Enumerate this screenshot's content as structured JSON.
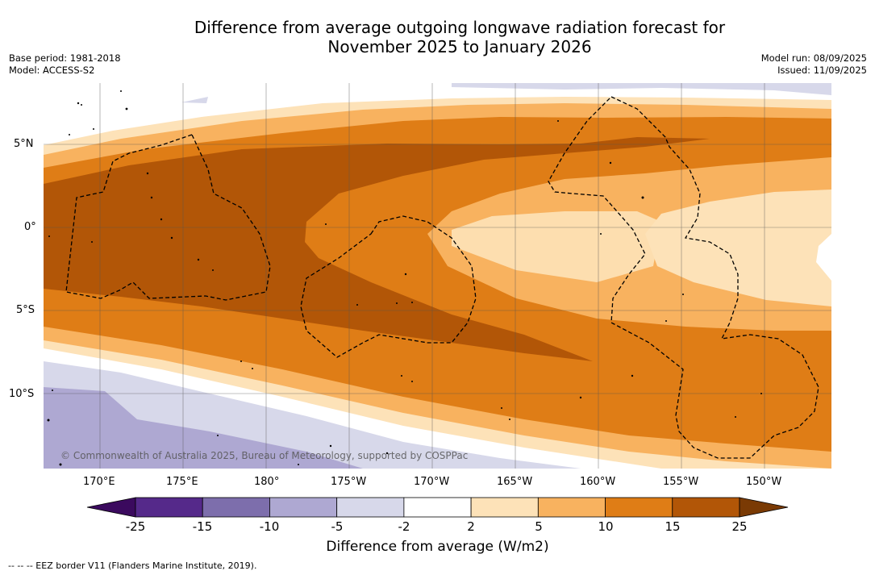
{
  "title_line1": "Difference from average outgoing longwave radiation forecast for",
  "title_line2": "November 2025 to January 2026",
  "base_period": "Base period: 1981-2018",
  "model": "Model: ACCESS-S2",
  "model_run": "Model run: 08/09/2025",
  "issued": "Issued: 11/09/2025",
  "copyright": "© Commonwealth of Australia 2025, Bureau of Meteorology, supported by COSPPac",
  "footer": "--  --  -- EEZ border V11 (Flanders Marine Institute, 2019).",
  "lat_labels": [
    "5°N",
    "0°",
    "5°S",
    "10°S"
  ],
  "lon_labels": [
    "170°E",
    "175°E",
    "180°",
    "175°W",
    "170°W",
    "165°W",
    "160°W",
    "155°W",
    "150°W"
  ],
  "colorbar": {
    "title": "Difference from average (W/m2)",
    "ticks": [
      "-25",
      "-15",
      "-10",
      "-5",
      "-2",
      "2",
      "5",
      "10",
      "15",
      "25"
    ],
    "colors": [
      "#55298a",
      "#7d6eac",
      "#aea8d2",
      "#d7d8ea",
      "#ffffff",
      "#fde2b8",
      "#f8b25f",
      "#df7d16",
      "#b25607"
    ],
    "under_color": "#3b0a5e",
    "over_color": "#7a3a04"
  }
}
